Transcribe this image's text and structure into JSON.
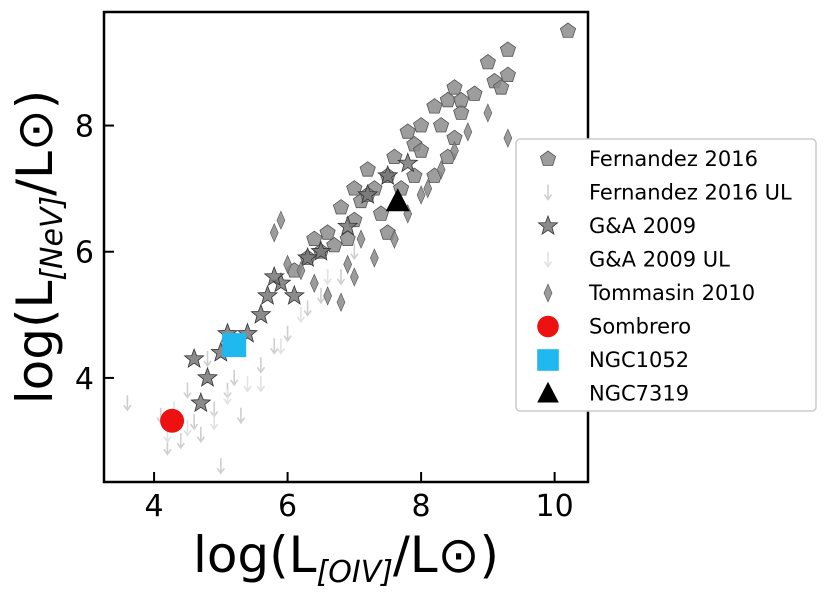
{
  "chart_data": {
    "type": "scatter",
    "xlabel": {
      "prefix": "log(L",
      "sub": "[OIV]",
      "suffix": "/L⊙)"
    },
    "ylabel": {
      "prefix": "log(L",
      "sub": "[NeV]",
      "suffix": "/L⊙)"
    },
    "xlim": [
      3.25,
      10.5
    ],
    "ylim": [
      2.35,
      9.8
    ],
    "x_ticks": [
      4,
      6,
      8,
      10
    ],
    "y_ticks": [
      4,
      6,
      8
    ],
    "grid": false,
    "legend_position": "right",
    "series": [
      {
        "name": "Fernandez 2016",
        "marker": "pentagon",
        "color": "#8c8c8c",
        "points": [
          [
            10.2,
            9.5
          ],
          [
            9.3,
            9.2
          ],
          [
            9.3,
            8.8
          ],
          [
            9.1,
            8.7
          ],
          [
            9.0,
            9.0
          ],
          [
            8.8,
            8.5
          ],
          [
            8.5,
            8.6
          ],
          [
            8.6,
            8.2
          ],
          [
            8.4,
            8.4
          ],
          [
            8.3,
            8.0
          ],
          [
            8.2,
            8.3
          ],
          [
            8.0,
            8.0
          ],
          [
            8.5,
            7.8
          ],
          [
            7.9,
            7.7
          ],
          [
            7.8,
            7.9
          ],
          [
            7.6,
            7.5
          ],
          [
            7.5,
            7.2
          ],
          [
            7.3,
            7.0
          ],
          [
            7.2,
            7.3
          ],
          [
            7.1,
            6.8
          ],
          [
            7.0,
            6.5
          ],
          [
            6.8,
            6.7
          ],
          [
            6.6,
            6.3
          ],
          [
            6.5,
            6.0
          ],
          [
            6.3,
            5.9
          ],
          [
            6.1,
            5.7
          ],
          [
            7.5,
            6.3
          ],
          [
            8.2,
            7.2
          ],
          [
            8.4,
            7.5
          ],
          [
            7.0,
            7.0
          ],
          [
            6.9,
            6.2
          ],
          [
            7.7,
            7.0
          ],
          [
            8.0,
            7.6
          ],
          [
            7.4,
            6.6
          ],
          [
            6.7,
            6.1
          ],
          [
            7.2,
            6.9
          ],
          [
            6.4,
            6.2
          ],
          [
            7.9,
            7.2
          ],
          [
            8.6,
            8.4
          ],
          [
            9.2,
            8.6
          ]
        ]
      },
      {
        "name": "Fernandez 2016 UL",
        "marker": "down-arrow",
        "color": "#cfcfcf",
        "points": [
          [
            3.6,
            3.6
          ],
          [
            4.1,
            3.4
          ],
          [
            4.2,
            2.9
          ],
          [
            4.4,
            3.0
          ],
          [
            4.6,
            3.3
          ],
          [
            4.7,
            3.1
          ],
          [
            4.9,
            3.5
          ],
          [
            5.0,
            2.6
          ],
          [
            5.1,
            3.8
          ],
          [
            5.3,
            3.4
          ],
          [
            5.6,
            4.2
          ],
          [
            5.8,
            4.5
          ],
          [
            6.0,
            4.7
          ],
          [
            6.3,
            5.1
          ],
          [
            6.5,
            5.3
          ],
          [
            6.8,
            5.6
          ],
          [
            7.0,
            6.0
          ],
          [
            5.2,
            4.0
          ],
          [
            4.5,
            3.8
          ],
          [
            4.8,
            4.3
          ]
        ]
      },
      {
        "name": "G&A 2009",
        "marker": "star",
        "color": "#777777",
        "points": [
          [
            4.6,
            4.3
          ],
          [
            4.8,
            4.0
          ],
          [
            5.0,
            4.4
          ],
          [
            5.2,
            4.5
          ],
          [
            5.4,
            4.7
          ],
          [
            5.6,
            5.0
          ],
          [
            5.7,
            5.3
          ],
          [
            5.9,
            5.5
          ],
          [
            6.1,
            5.3
          ],
          [
            6.3,
            5.9
          ],
          [
            6.5,
            6.0
          ],
          [
            6.9,
            6.4
          ],
          [
            7.2,
            6.9
          ],
          [
            7.5,
            7.2
          ],
          [
            4.7,
            3.6
          ],
          [
            5.1,
            4.7
          ],
          [
            5.8,
            5.6
          ],
          [
            7.8,
            7.4
          ]
        ]
      },
      {
        "name": "G&A 2009 UL",
        "marker": "down-arrow",
        "color": "#e2e2e2",
        "points": [
          [
            4.3,
            3.5
          ],
          [
            4.5,
            3.2
          ],
          [
            4.9,
            3.3
          ],
          [
            5.1,
            3.7
          ],
          [
            5.4,
            3.9
          ],
          [
            5.9,
            4.5
          ],
          [
            6.2,
            5.0
          ],
          [
            6.6,
            5.6
          ],
          [
            4.2,
            3.1
          ],
          [
            5.6,
            3.9
          ]
        ]
      },
      {
        "name": "Tommasin 2010",
        "marker": "thin-diamond",
        "color": "#8a8a8a",
        "points": [
          [
            5.8,
            6.3
          ],
          [
            6.0,
            5.8
          ],
          [
            6.2,
            5.7
          ],
          [
            6.4,
            5.5
          ],
          [
            6.6,
            5.3
          ],
          [
            6.8,
            5.2
          ],
          [
            7.0,
            5.6
          ],
          [
            7.3,
            5.9
          ],
          [
            7.6,
            6.2
          ],
          [
            7.8,
            6.6
          ],
          [
            8.0,
            6.9
          ],
          [
            8.3,
            7.3
          ],
          [
            8.5,
            7.6
          ],
          [
            8.7,
            7.9
          ],
          [
            9.0,
            8.2
          ],
          [
            9.3,
            7.8
          ],
          [
            6.9,
            5.8
          ],
          [
            7.1,
            6.2
          ],
          [
            5.9,
            6.5
          ],
          [
            8.1,
            7.0
          ]
        ]
      },
      {
        "name": "Sombrero",
        "marker": "circle",
        "color": "#ee1111",
        "points": [
          [
            4.27,
            3.32
          ]
        ]
      },
      {
        "name": "NGC1052",
        "marker": "square",
        "color": "#1fb8f0",
        "points": [
          [
            5.2,
            4.52
          ]
        ]
      },
      {
        "name": "NGC7319",
        "marker": "triangle",
        "color": "#000000",
        "points": [
          [
            7.65,
            6.8
          ]
        ]
      }
    ]
  }
}
